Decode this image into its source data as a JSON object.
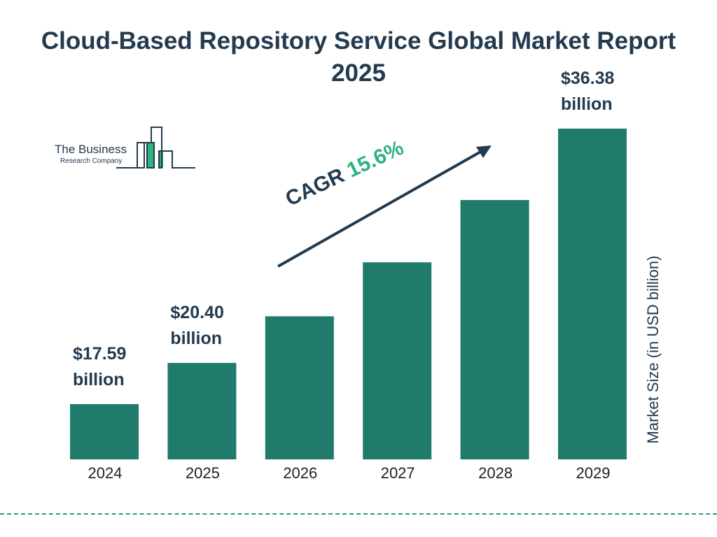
{
  "chart_data": {
    "type": "bar",
    "title": "Cloud-Based Repository Service Global Market Report 2025",
    "categories": [
      "2024",
      "2025",
      "2026",
      "2027",
      "2028",
      "2029"
    ],
    "values": [
      17.59,
      20.4,
      23.58,
      27.26,
      31.51,
      36.38
    ],
    "data_labels": {
      "0": "$17.59 billion",
      "1": "$20.40 billion",
      "5": "$36.38 billion"
    },
    "label_lines": {
      "0": [
        "$17.59",
        "billion"
      ],
      "1": [
        "$20.40",
        "billion"
      ],
      "5": [
        "$36.38",
        "billion"
      ]
    },
    "xlabel": "",
    "ylabel": "Market Size (in USD billion)",
    "annotation": {
      "prefix": "CAGR",
      "value": "15.6%"
    },
    "grid": false,
    "bar_color": "#217b6c",
    "accent_color": "#2bb381",
    "text_color": "#233a4f"
  },
  "logo": {
    "line1": "The Business",
    "line2": "Research Company"
  }
}
